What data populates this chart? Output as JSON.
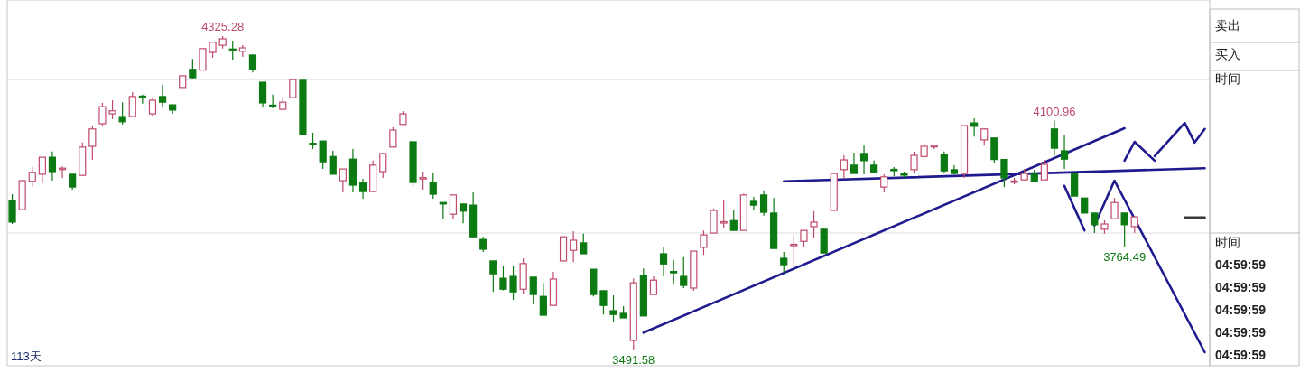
{
  "chart_data": {
    "type": "candlestick",
    "categories": [
      null,
      null,
      null,
      null,
      null,
      null,
      null,
      null,
      null,
      null,
      null,
      null,
      null,
      null,
      null,
      null,
      null,
      null,
      null,
      null,
      null,
      null,
      null,
      null,
      null,
      null,
      null,
      null,
      null,
      null,
      null,
      null,
      null,
      null,
      null,
      null,
      null,
      null,
      null,
      null,
      null,
      null,
      null,
      null,
      null,
      null,
      null,
      null,
      null,
      null,
      null,
      null,
      null,
      null,
      null,
      null,
      null,
      null,
      null,
      null,
      null,
      null,
      null,
      null,
      null,
      null,
      null,
      null,
      null,
      null,
      null,
      null,
      null,
      null,
      null,
      null,
      null,
      null,
      null,
      null,
      null,
      null,
      null,
      null,
      null,
      null,
      null,
      null,
      null,
      null,
      null,
      null,
      null,
      null,
      null,
      null,
      null,
      null,
      null,
      null,
      null,
      null,
      null,
      null,
      null,
      null,
      null,
      null,
      null,
      null,
      null,
      null,
      null,
      null,
      null,
      null,
      null,
      null,
      null,
      null
    ],
    "ohlc": [
      [
        3889,
        3906,
        3827,
        3832
      ],
      [
        3865,
        3944,
        3865,
        3942
      ],
      [
        3940,
        3978,
        3925,
        3964
      ],
      [
        3959,
        4004,
        3935,
        4004
      ],
      [
        4004,
        4019,
        3942,
        3966
      ],
      [
        3972,
        3980,
        3949,
        3975
      ],
      [
        3959,
        3959,
        3918,
        3925
      ],
      [
        3956,
        4043,
        3956,
        4031
      ],
      [
        4033,
        4086,
        3997,
        4079
      ],
      [
        4093,
        4148,
        4088,
        4138
      ],
      [
        4119,
        4155,
        4105,
        4127
      ],
      [
        4112,
        4150,
        4091,
        4098
      ],
      [
        4112,
        4177,
        4112,
        4165
      ],
      [
        4166,
        4170,
        4146,
        4164
      ],
      [
        4119,
        4160,
        4114,
        4155
      ],
      [
        4165,
        4196,
        4138,
        4150
      ],
      [
        4143,
        4143,
        4119,
        4129
      ],
      [
        4189,
        4220,
        4189,
        4220
      ],
      [
        4237,
        4265,
        4210,
        4215
      ],
      [
        4235,
        4292,
        4235,
        4292
      ],
      [
        4282,
        4309,
        4268,
        4309
      ],
      [
        4301,
        4325.28,
        4292,
        4318
      ],
      [
        4291,
        4313,
        4263,
        4288
      ],
      [
        4285,
        4301,
        4270,
        4294
      ],
      [
        4275,
        4275,
        4229,
        4237
      ],
      [
        4203,
        4203,
        4138,
        4148
      ],
      [
        4142,
        4170,
        4134,
        4140
      ],
      [
        4131,
        4165,
        4129,
        4150
      ],
      [
        4162,
        4210,
        4162,
        4210
      ],
      [
        4208,
        4208,
        4064,
        4064
      ],
      [
        4041,
        4069,
        4026,
        4039
      ],
      [
        4047,
        4047,
        3973,
        3992
      ],
      [
        4006,
        4021,
        3959,
        3959
      ],
      [
        3942,
        3973,
        3911,
        3973
      ],
      [
        3999,
        4026,
        3911,
        3930
      ],
      [
        3937,
        3947,
        3894,
        3913
      ],
      [
        3913,
        3995,
        3913,
        3983
      ],
      [
        3966,
        4014,
        3949,
        4014
      ],
      [
        4031,
        4083,
        4031,
        4076
      ],
      [
        4091,
        4126,
        4091,
        4119
      ],
      [
        4045,
        4045,
        3928,
        3937
      ],
      [
        3948,
        3966,
        3918,
        3950
      ],
      [
        3937,
        3961,
        3894,
        3906
      ],
      [
        3884,
        3884,
        3841,
        3880
      ],
      [
        3853,
        3904,
        3841,
        3904
      ],
      [
        3880,
        3880,
        3829,
        3861
      ],
      [
        3877,
        3911,
        3793,
        3793
      ],
      [
        3786,
        3793,
        3753,
        3760
      ],
      [
        3729,
        3729,
        3647,
        3695
      ],
      [
        3683,
        3717,
        3651,
        3654
      ],
      [
        3688,
        3717,
        3626,
        3647
      ],
      [
        3654,
        3736,
        3640,
        3722
      ],
      [
        3686,
        3686,
        3614,
        3640
      ],
      [
        3635,
        3671,
        3585,
        3585
      ],
      [
        3611,
        3700,
        3611,
        3681
      ],
      [
        3729,
        3793,
        3729,
        3793
      ],
      [
        3757,
        3808,
        3726,
        3784
      ],
      [
        3777,
        3801,
        3748,
        3748
      ],
      [
        3707,
        3707,
        3635,
        3640
      ],
      [
        3650,
        3650,
        3587,
        3611
      ],
      [
        3597,
        3638,
        3566,
        3587
      ],
      [
        3590,
        3609,
        3578,
        3578
      ],
      [
        3518,
        3683,
        3491.58,
        3671
      ],
      [
        3690,
        3709,
        3583,
        3583
      ],
      [
        3640,
        3688,
        3640,
        3678
      ],
      [
        3748,
        3765,
        3688,
        3721
      ],
      [
        3701,
        3731,
        3669,
        3699
      ],
      [
        3688,
        3739,
        3657,
        3664
      ],
      [
        3657,
        3755,
        3650,
        3755
      ],
      [
        3765,
        3810,
        3745,
        3798
      ],
      [
        3803,
        3868,
        3803,
        3863
      ],
      [
        3831,
        3889,
        3815,
        3833
      ],
      [
        3836,
        3863,
        3810,
        3810
      ],
      [
        3810,
        3908,
        3810,
        3904
      ],
      [
        3887,
        3899,
        3865,
        3877
      ],
      [
        3904,
        3916,
        3849,
        3858
      ],
      [
        3856,
        3896,
        3762,
        3762
      ],
      [
        3736,
        3753,
        3698,
        3719
      ],
      [
        3771,
        3798,
        3710,
        3773
      ],
      [
        3781,
        3810,
        3767,
        3810
      ],
      [
        3820,
        3861,
        3791,
        3832
      ],
      [
        3813,
        3817,
        3750,
        3750
      ],
      [
        3863,
        3961,
        3863,
        3961
      ],
      [
        3971,
        4009,
        3949,
        3997
      ],
      [
        3983,
        4016,
        3961,
        3961
      ],
      [
        4014,
        4035,
        3959,
        3995
      ],
      [
        3983,
        3995,
        3964,
        3964
      ],
      [
        3925,
        3959,
        3911,
        3952
      ],
      [
        3972,
        3978,
        3954,
        3970
      ],
      [
        3960,
        3966,
        3949,
        3957
      ],
      [
        3971,
        4019,
        3961,
        4009
      ],
      [
        4006,
        4040,
        4006,
        4033
      ],
      [
        4032,
        4038,
        4026,
        4035
      ],
      [
        4011,
        4019,
        3961,
        3968
      ],
      [
        3971,
        3983,
        3959,
        3961
      ],
      [
        3961,
        4088,
        3949,
        4088
      ],
      [
        4095,
        4107,
        4059,
        4086
      ],
      [
        4050,
        4081,
        4035,
        4079
      ],
      [
        4055,
        4055,
        3988,
        3998
      ],
      [
        3998,
        3998,
        3925,
        3949
      ],
      [
        3938,
        3949,
        3932,
        3941
      ],
      [
        3944,
        3973,
        3944,
        3961
      ],
      [
        3959,
        3971,
        3940,
        3940
      ],
      [
        3944,
        3997,
        3944,
        3985
      ],
      [
        4079,
        4100.96,
        4009,
        4028
      ],
      [
        4021,
        4062,
        3973,
        3999
      ],
      [
        3961,
        3961,
        3901,
        3901
      ],
      [
        3896,
        3896,
        3856,
        3856
      ],
      [
        3856,
        3856,
        3803,
        3825
      ],
      [
        3813,
        3837,
        3801,
        3827
      ],
      [
        3841,
        3896,
        3841,
        3884
      ],
      [
        3856,
        3856,
        3764.49,
        3825
      ],
      [
        3820,
        3846,
        3803,
        3846
      ],
      null,
      null,
      null,
      null,
      null,
      null,
      null
    ],
    "colors": [
      "#0b7a12",
      "#c04a6a",
      "#c04a6a",
      "#c04a6a",
      "#0b7a12",
      "#c04a6a",
      "#0b7a12",
      "#c04a6a",
      "#c04a6a",
      "#c04a6a",
      "#c04a6a",
      "#0b7a12",
      "#c04a6a",
      "#0b7a12",
      "#c04a6a",
      "#0b7a12",
      "#0b7a12",
      "#c04a6a",
      "#0b7a12",
      "#c04a6a",
      "#c04a6a",
      "#c04a6a",
      "#0b7a12",
      "#c04a6a",
      "#0b7a12",
      "#0b7a12",
      "#0b7a12",
      "#c04a6a",
      "#c04a6a",
      "#0b7a12",
      "#0b7a12",
      "#0b7a12",
      "#0b7a12",
      "#c04a6a",
      "#0b7a12",
      "#0b7a12",
      "#c04a6a",
      "#c04a6a",
      "#c04a6a",
      "#c04a6a",
      "#0b7a12",
      "#c04a6a",
      "#0b7a12",
      "#0b7a12",
      "#c04a6a",
      "#0b7a12",
      "#0b7a12",
      "#0b7a12",
      "#0b7a12",
      "#0b7a12",
      "#0b7a12",
      "#c04a6a",
      "#0b7a12",
      "#0b7a12",
      "#c04a6a",
      "#c04a6a",
      "#c04a6a",
      "#0b7a12",
      "#0b7a12",
      "#0b7a12",
      "#0b7a12",
      "#0b7a12",
      "#c04a6a",
      "#0b7a12",
      "#c04a6a",
      "#0b7a12",
      "#0b7a12",
      "#0b7a12",
      "#c04a6a",
      "#c04a6a",
      "#c04a6a",
      "#c04a6a",
      "#0b7a12",
      "#c04a6a",
      "#0b7a12",
      "#0b7a12",
      "#0b7a12",
      "#0b7a12",
      "#c04a6a",
      "#c04a6a",
      "#c04a6a",
      "#0b7a12",
      "#c04a6a",
      "#c04a6a",
      "#0b7a12",
      "#0b7a12",
      "#0b7a12",
      "#c04a6a",
      "#0b7a12",
      "#0b7a12",
      "#c04a6a",
      "#c04a6a",
      "#c04a6a",
      "#0b7a12",
      "#0b7a12",
      "#c04a6a",
      "#0b7a12",
      "#c04a6a",
      "#0b7a12",
      "#0b7a12",
      "#c04a6a",
      "#c04a6a",
      "#0b7a12",
      "#c04a6a",
      "#0b7a12",
      "#0b7a12",
      "#0b7a12",
      "#0b7a12",
      "#0b7a12",
      "#c04a6a",
      "#c04a6a",
      "#0b7a12",
      "#c04a6a",
      null,
      null,
      null,
      null,
      null,
      null,
      null
    ],
    "series": [
      {
        "type": "line",
        "color": "#1f1b8f",
        "values": [
          null,
          null,
          null,
          null,
          null,
          null,
          null,
          null,
          null,
          null,
          null,
          null,
          null,
          null,
          null,
          null,
          null,
          null,
          null,
          null,
          null,
          null,
          null,
          null,
          null,
          null,
          null,
          null,
          null,
          null,
          null,
          null,
          null,
          null,
          null,
          null,
          null,
          null,
          null,
          null,
          null,
          null,
          null,
          null,
          null,
          null,
          null,
          null,
          null,
          null,
          null,
          null,
          null,
          null,
          null,
          null,
          null,
          null,
          null,
          null,
          null,
          null,
          null,
          3539,
          null,
          null,
          null,
          null,
          null,
          null,
          null,
          null,
          null,
          null,
          null,
          null,
          null,
          null,
          null,
          null,
          null,
          null,
          null,
          null,
          null,
          null,
          null,
          null,
          null,
          null,
          null,
          null,
          null,
          null,
          null,
          null,
          null,
          null,
          null,
          null,
          null,
          null,
          null,
          null,
          null,
          null,
          null,
          null,
          null,
          null,
          null,
          4081,
          null,
          null,
          null,
          null,
          null,
          null,
          null,
          null
        ]
      },
      {
        "type": "line",
        "color": "#1f1b8f",
        "values": [
          null,
          null,
          null,
          null,
          null,
          null,
          null,
          null,
          null,
          null,
          null,
          null,
          null,
          null,
          null,
          null,
          null,
          null,
          null,
          null,
          null,
          null,
          null,
          null,
          null,
          null,
          null,
          null,
          null,
          null,
          null,
          null,
          null,
          null,
          null,
          null,
          null,
          null,
          null,
          null,
          null,
          null,
          null,
          null,
          null,
          null,
          null,
          null,
          null,
          null,
          null,
          null,
          null,
          null,
          null,
          null,
          null,
          null,
          null,
          null,
          null,
          null,
          null,
          null,
          null,
          null,
          null,
          null,
          null,
          null,
          null,
          null,
          null,
          null,
          null,
          null,
          null,
          3940,
          null,
          null,
          null,
          null,
          null,
          null,
          null,
          null,
          null,
          null,
          null,
          null,
          null,
          null,
          null,
          null,
          null,
          null,
          null,
          null,
          null,
          null,
          null,
          null,
          null,
          null,
          null,
          null,
          null,
          null,
          null,
          null,
          null,
          null,
          null,
          null,
          null,
          null,
          null,
          null,
          null,
          3975
        ]
      },
      {
        "type": "line",
        "color": "#1f1b8f",
        "values": [
          null,
          null,
          null,
          null,
          null,
          null,
          null,
          null,
          null,
          null,
          null,
          null,
          null,
          null,
          null,
          null,
          null,
          null,
          null,
          null,
          null,
          null,
          null,
          null,
          null,
          null,
          null,
          null,
          null,
          null,
          null,
          null,
          null,
          null,
          null,
          null,
          null,
          null,
          null,
          null,
          null,
          null,
          null,
          null,
          null,
          null,
          null,
          null,
          null,
          null,
          null,
          null,
          null,
          null,
          null,
          null,
          null,
          null,
          null,
          null,
          null,
          null,
          null,
          null,
          null,
          null,
          null,
          null,
          null,
          null,
          null,
          null,
          null,
          null,
          null,
          null,
          null,
          null,
          null,
          null,
          null,
          null,
          null,
          null,
          null,
          null,
          null,
          null,
          null,
          null,
          null,
          null,
          null,
          null,
          null,
          null,
          null,
          null,
          null,
          null,
          null,
          null,
          null,
          null,
          null,
          3928,
          null,
          3810,
          null,
          null,
          null,
          null,
          null,
          null,
          null,
          null,
          null,
          null,
          null,
          null
        ]
      },
      {
        "type": "line",
        "color": "#1f1b8f",
        "values": [
          null,
          null,
          null,
          null,
          null,
          null,
          null,
          null,
          null,
          null,
          null,
          null,
          null,
          null,
          null,
          null,
          null,
          null,
          null,
          null,
          null,
          null,
          null,
          null,
          null,
          null,
          null,
          null,
          null,
          null,
          null,
          null,
          null,
          null,
          null,
          null,
          null,
          null,
          null,
          null,
          null,
          null,
          null,
          null,
          null,
          null,
          null,
          null,
          null,
          null,
          null,
          null,
          null,
          null,
          null,
          null,
          null,
          null,
          null,
          null,
          null,
          null,
          null,
          null,
          null,
          null,
          null,
          null,
          null,
          null,
          null,
          null,
          null,
          null,
          null,
          null,
          null,
          null,
          null,
          null,
          null,
          null,
          null,
          null,
          null,
          null,
          null,
          null,
          null,
          null,
          null,
          null,
          null,
          null,
          null,
          null,
          null,
          null,
          null,
          null,
          null,
          null,
          null,
          null,
          null,
          null,
          null,
          null,
          3823,
          null,
          3942,
          null,
          null,
          null,
          null,
          null,
          null,
          null,
          null,
          3487
        ]
      },
      {
        "type": "line",
        "color": "#1f1b8f",
        "values": [
          null,
          null,
          null,
          null,
          null,
          null,
          null,
          null,
          null,
          null,
          null,
          null,
          null,
          null,
          null,
          null,
          null,
          null,
          null,
          null,
          null,
          null,
          null,
          null,
          null,
          null,
          null,
          null,
          null,
          null,
          null,
          null,
          null,
          null,
          null,
          null,
          null,
          null,
          null,
          null,
          null,
          null,
          null,
          null,
          null,
          null,
          null,
          null,
          null,
          null,
          null,
          null,
          null,
          null,
          null,
          null,
          null,
          null,
          null,
          null,
          null,
          null,
          null,
          null,
          null,
          null,
          null,
          null,
          null,
          null,
          null,
          null,
          null,
          null,
          null,
          null,
          null,
          null,
          null,
          null,
          null,
          null,
          null,
          null,
          null,
          null,
          null,
          null,
          null,
          null,
          null,
          null,
          null,
          null,
          null,
          null,
          null,
          null,
          null,
          null,
          null,
          null,
          null,
          null,
          null,
          null,
          null,
          null,
          null,
          null,
          null,
          3995,
          4045,
          null,
          3995,
          null,
          null,
          null,
          null,
          null
        ]
      },
      {
        "type": "line",
        "color": "#1f1b8f",
        "values": [
          null,
          null,
          null,
          null,
          null,
          null,
          null,
          null,
          null,
          null,
          null,
          null,
          null,
          null,
          null,
          null,
          null,
          null,
          null,
          null,
          null,
          null,
          null,
          null,
          null,
          null,
          null,
          null,
          null,
          null,
          null,
          null,
          null,
          null,
          null,
          null,
          null,
          null,
          null,
          null,
          null,
          null,
          null,
          null,
          null,
          null,
          null,
          null,
          null,
          null,
          null,
          null,
          null,
          null,
          null,
          null,
          null,
          null,
          null,
          null,
          null,
          null,
          null,
          null,
          null,
          null,
          null,
          null,
          null,
          null,
          null,
          null,
          null,
          null,
          null,
          null,
          null,
          null,
          null,
          null,
          null,
          null,
          null,
          null,
          null,
          null,
          null,
          null,
          null,
          null,
          null,
          null,
          null,
          null,
          null,
          null,
          null,
          null,
          null,
          null,
          null,
          null,
          null,
          null,
          null,
          null,
          null,
          null,
          null,
          null,
          null,
          null,
          null,
          null,
          4007,
          null,
          null,
          4095,
          4043,
          4079
        ]
      },
      {
        "type": "line",
        "color": "#3a3a3a",
        "values": [
          null,
          null,
          null,
          null,
          null,
          null,
          null,
          null,
          null,
          null,
          null,
          null,
          null,
          null,
          null,
          null,
          null,
          null,
          null,
          null,
          null,
          null,
          null,
          null,
          null,
          null,
          null,
          null,
          null,
          null,
          null,
          null,
          null,
          null,
          null,
          null,
          null,
          null,
          null,
          null,
          null,
          null,
          null,
          null,
          null,
          null,
          null,
          null,
          null,
          null,
          null,
          null,
          null,
          null,
          null,
          null,
          null,
          null,
          null,
          null,
          null,
          null,
          null,
          null,
          null,
          null,
          null,
          null,
          null,
          null,
          null,
          null,
          null,
          null,
          null,
          null,
          null,
          null,
          null,
          null,
          null,
          null,
          null,
          null,
          null,
          null,
          null,
          null,
          null,
          null,
          null,
          null,
          null,
          null,
          null,
          null,
          null,
          null,
          null,
          null,
          null,
          null,
          null,
          null,
          null,
          null,
          null,
          null,
          null,
          null,
          null,
          null,
          null,
          null,
          null,
          null,
          null,
          3844,
          null,
          3844
        ]
      }
    ],
    "ylim": [
      3451,
      4421
    ],
    "yticks": [
      {
        "value": 4210,
        "label": null
      },
      {
        "value": 3803,
        "label": null
      }
    ],
    "grid": "y",
    "annotations": [
      {
        "text": "4325.28",
        "y": 4325.28
      },
      {
        "text": "3491.58",
        "y": 3491.58
      },
      {
        "text": "4100.96",
        "y": 4100.96
      },
      {
        "text": "3764.49",
        "y": 3764.49
      },
      "113天",
      "卖出",
      "买入",
      "时间",
      "时间",
      "04:59:59",
      "04:59:59",
      "04:59:59",
      "04:59:59",
      "04:59:59"
    ]
  }
}
